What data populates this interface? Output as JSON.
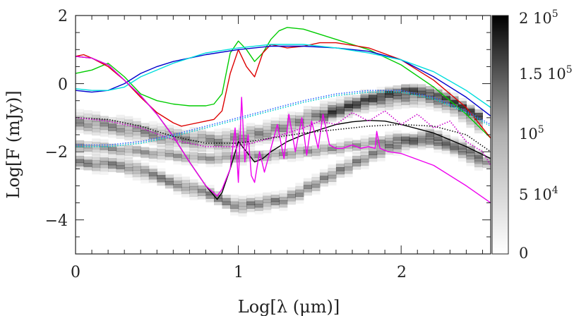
{
  "chart_data": {
    "type": "line",
    "title": "",
    "xlabel": "Log[λ (μm)]",
    "ylabel": "Log[F (mJy)]",
    "xlim": [
      0,
      2.55
    ],
    "ylim": [
      -5,
      2
    ],
    "x_ticks": [
      "0",
      "1",
      "2"
    ],
    "y_ticks": [
      "2",
      "0",
      "−2",
      "−4"
    ],
    "colorbar": {
      "range": [
        0,
        200000
      ],
      "labels": [
        {
          "base": "2 10",
          "exp": "5",
          "value": 200000
        },
        {
          "base": "1.5 10",
          "exp": "5",
          "value": 150000
        },
        {
          "base": "10",
          "exp": "5",
          "value": 100000
        },
        {
          "base": "5 10",
          "exp": "4",
          "value": 50000
        },
        {
          "base": "0",
          "exp": "",
          "value": 0
        }
      ],
      "colormap": "white-to-black"
    },
    "background_density": {
      "bands": [
        {
          "points": [
            [
              0,
              -2.3
            ],
            [
              0.3,
              -2.4
            ],
            [
              0.6,
              -2.9
            ],
            [
              0.85,
              -3.3
            ],
            [
              1.0,
              -3.6
            ],
            [
              1.3,
              -3.4
            ],
            [
              1.6,
              -2.6
            ],
            [
              1.9,
              -1.9
            ],
            [
              2.2,
              -1.5
            ],
            [
              2.5,
              -2.3
            ]
          ],
          "half_width": 0.12,
          "intensity": 0.55
        },
        {
          "points": [
            [
              0,
              -1.1
            ],
            [
              0.3,
              -1.3
            ],
            [
              0.6,
              -1.6
            ],
            [
              0.9,
              -1.7
            ],
            [
              1.2,
              -1.4
            ],
            [
              1.5,
              -0.9
            ],
            [
              1.8,
              -0.5
            ],
            [
              2.1,
              -0.35
            ],
            [
              2.3,
              -0.55
            ],
            [
              2.5,
              -1.2
            ]
          ],
          "half_width": 0.16,
          "intensity": 0.5
        },
        {
          "points": [
            [
              0,
              -1.8
            ],
            [
              0.4,
              -2.0
            ],
            [
              0.8,
              -2.2
            ],
            [
              1.2,
              -2.1
            ],
            [
              1.6,
              -1.9
            ],
            [
              2.0,
              -1.6
            ],
            [
              2.4,
              -1.9
            ],
            [
              2.55,
              -2.4
            ]
          ],
          "half_width": 0.1,
          "intensity": 0.45
        },
        {
          "points": [
            [
              1.5,
              -1.0
            ],
            [
              1.8,
              -0.45
            ],
            [
              2.0,
              -0.2
            ],
            [
              2.15,
              -0.2
            ],
            [
              2.3,
              -0.5
            ],
            [
              2.5,
              -1.0
            ]
          ],
          "half_width": 0.09,
          "intensity": 0.75
        }
      ]
    },
    "series": [
      {
        "color": "#00cc00",
        "style": "solid",
        "x": [
          0,
          0.1,
          0.2,
          0.3,
          0.4,
          0.5,
          0.6,
          0.7,
          0.8,
          0.85,
          0.9,
          0.95,
          1.0,
          1.05,
          1.1,
          1.15,
          1.2,
          1.25,
          1.3,
          1.4,
          1.5,
          1.6,
          1.8,
          2.0,
          2.2,
          2.4,
          2.55
        ],
        "y": [
          0.3,
          0.4,
          0.6,
          0.2,
          -0.3,
          -0.5,
          -0.6,
          -0.65,
          -0.65,
          -0.6,
          -0.3,
          0.9,
          1.25,
          1.0,
          0.65,
          0.9,
          1.3,
          1.55,
          1.65,
          1.6,
          1.45,
          1.3,
          1.0,
          0.55,
          -0.1,
          -0.9,
          -1.6
        ]
      },
      {
        "color": "#dd0000",
        "style": "solid",
        "x": [
          0,
          0.05,
          0.1,
          0.2,
          0.3,
          0.4,
          0.5,
          0.6,
          0.65,
          0.7,
          0.8,
          0.85,
          0.9,
          0.95,
          1.0,
          1.05,
          1.1,
          1.15,
          1.2,
          1.25,
          1.3,
          1.4,
          1.5,
          1.6,
          1.8,
          2.0,
          2.2,
          2.4,
          2.55
        ],
        "y": [
          0.8,
          0.85,
          0.75,
          0.5,
          0.1,
          -0.4,
          -0.85,
          -1.15,
          -1.25,
          -1.2,
          -1.1,
          -1.05,
          -0.8,
          0.3,
          1.0,
          0.5,
          0.2,
          0.9,
          1.15,
          1.1,
          1.05,
          1.1,
          1.2,
          1.2,
          1.05,
          0.7,
          0.1,
          -0.7,
          -1.6
        ]
      },
      {
        "color": "#0000cc",
        "style": "solid",
        "x": [
          0,
          0.1,
          0.2,
          0.3,
          0.4,
          0.5,
          0.6,
          0.8,
          1.0,
          1.2,
          1.4,
          1.6,
          1.8,
          2.0,
          2.2,
          2.4,
          2.55
        ],
        "y": [
          -0.2,
          -0.25,
          -0.2,
          0.0,
          0.3,
          0.5,
          0.65,
          0.85,
          1.0,
          1.1,
          1.1,
          1.05,
          0.95,
          0.7,
          0.2,
          -0.4,
          -0.95
        ]
      },
      {
        "color": "#00dddd",
        "style": "solid",
        "x": [
          0,
          0.1,
          0.2,
          0.3,
          0.4,
          0.6,
          0.8,
          1.0,
          1.2,
          1.4,
          1.6,
          1.8,
          2.0,
          2.2,
          2.4,
          2.55
        ],
        "y": [
          -0.15,
          -0.2,
          -0.2,
          -0.1,
          0.2,
          0.6,
          0.9,
          1.05,
          1.15,
          1.15,
          1.05,
          0.9,
          0.7,
          0.35,
          -0.2,
          -0.7
        ]
      },
      {
        "color": "#000000",
        "style": "solid",
        "x": [
          0,
          0.1,
          0.2,
          0.3,
          0.4,
          0.5,
          0.6,
          0.7,
          0.8,
          0.87,
          0.9,
          0.95,
          1.0,
          1.05,
          1.1,
          1.15,
          1.2,
          1.3,
          1.4,
          1.5,
          1.6,
          1.7,
          1.8,
          1.9,
          2.0,
          2.2,
          2.4,
          2.55
        ],
        "y": [
          0.8,
          0.75,
          0.55,
          0.1,
          -0.35,
          -0.9,
          -1.55,
          -2.3,
          -3.0,
          -3.4,
          -3.2,
          -2.5,
          -1.7,
          -2.0,
          -2.3,
          -2.2,
          -2.0,
          -1.7,
          -1.5,
          -1.35,
          -1.2,
          -1.12,
          -1.08,
          -1.1,
          -1.2,
          -1.45,
          -1.85,
          -2.2
        ]
      },
      {
        "color": "#ee00ee",
        "style": "solid",
        "x": [
          0,
          0.1,
          0.2,
          0.3,
          0.4,
          0.5,
          0.6,
          0.7,
          0.8,
          0.87,
          0.9,
          0.95,
          0.98,
          1.0,
          1.02,
          1.04,
          1.06,
          1.08,
          1.1,
          1.13,
          1.16,
          1.2,
          1.24,
          1.28,
          1.31,
          1.35,
          1.39,
          1.42,
          1.45,
          1.49,
          1.52,
          1.56,
          1.6,
          1.64,
          1.7,
          1.75,
          1.8,
          1.84,
          1.85,
          1.87,
          1.92,
          2.0,
          2.2,
          2.4,
          2.55
        ],
        "y": [
          0.8,
          0.75,
          0.55,
          0.1,
          -0.35,
          -0.9,
          -1.55,
          -2.3,
          -3.0,
          -3.3,
          -3.1,
          -2.5,
          -1.3,
          -2.9,
          -0.4,
          -2.3,
          -1.5,
          -2.7,
          -2.9,
          -2.0,
          -2.6,
          -1.9,
          -1.2,
          -2.2,
          -0.9,
          -2.0,
          -1.0,
          -2.1,
          -1.1,
          -1.9,
          -0.9,
          -1.8,
          -1.9,
          -1.9,
          -1.8,
          -1.9,
          -1.85,
          -1.9,
          -1.4,
          -1.9,
          -2.0,
          -2.05,
          -2.4,
          -3.0,
          -3.5
        ]
      },
      {
        "color": "#111111",
        "style": "dotted",
        "x": [
          0,
          0.2,
          0.4,
          0.6,
          0.8,
          1.0,
          1.2,
          1.4,
          1.6,
          1.8,
          2.0,
          2.2,
          2.4,
          2.55
        ],
        "y": [
          -1.0,
          -1.05,
          -1.25,
          -1.55,
          -1.75,
          -1.75,
          -1.6,
          -1.45,
          -1.35,
          -1.25,
          -1.2,
          -1.25,
          -1.5,
          -2.0
        ]
      },
      {
        "color": "#cc00cc",
        "style": "dotted",
        "x": [
          0,
          0.2,
          0.4,
          0.6,
          0.8,
          1.0,
          1.2,
          1.4,
          1.5,
          1.6,
          1.7,
          1.8,
          1.9,
          2.0,
          2.1,
          2.2,
          2.3,
          2.4,
          2.5,
          2.55
        ],
        "y": [
          -1.0,
          -1.1,
          -1.3,
          -1.65,
          -1.85,
          -1.85,
          -1.6,
          -1.3,
          -1.1,
          -1.2,
          -0.85,
          -1.1,
          -0.8,
          -1.2,
          -0.9,
          -1.3,
          -1.1,
          -1.7,
          -2.0,
          -2.4
        ]
      },
      {
        "color": "#3366ff",
        "style": "dotted",
        "x": [
          0,
          0.2,
          0.4,
          0.6,
          0.8,
          1.0,
          1.2,
          1.4,
          1.6,
          1.8,
          2.0,
          2.2,
          2.4,
          2.55
        ],
        "y": [
          -1.8,
          -1.8,
          -1.7,
          -1.5,
          -1.25,
          -1.0,
          -0.75,
          -0.5,
          -0.3,
          -0.2,
          -0.2,
          -0.4,
          -0.8,
          -1.2
        ]
      },
      {
        "color": "#00cccc",
        "style": "dotted",
        "x": [
          0,
          0.2,
          0.4,
          0.6,
          0.8,
          1.0,
          1.2,
          1.4,
          1.6,
          1.8,
          2.0,
          2.2,
          2.4,
          2.55
        ],
        "y": [
          -1.85,
          -1.85,
          -1.75,
          -1.55,
          -1.3,
          -1.05,
          -0.8,
          -0.55,
          -0.35,
          -0.25,
          -0.25,
          -0.45,
          -0.85,
          -1.25
        ]
      }
    ]
  }
}
